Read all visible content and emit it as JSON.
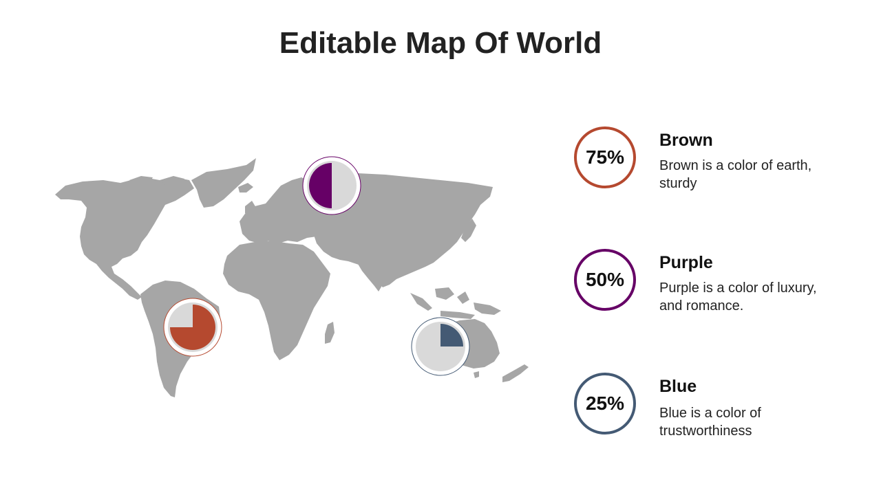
{
  "slide": {
    "title": "Editable Map Of World"
  },
  "colors": {
    "map_gray": "#a6a6a6",
    "pie_bg": "#d9d9d9",
    "brown": "#b5492f",
    "purple": "#660066",
    "blue": "#445a74"
  },
  "items": [
    {
      "key": "brown",
      "percent": "75%",
      "value": 0.75,
      "heading": "Brown",
      "description": "Brown is a color of earth, sturdy",
      "color": "#b5492f"
    },
    {
      "key": "purple",
      "percent": "50%",
      "value": 0.5,
      "heading": "Purple",
      "description": "Purple is a color of luxury, and romance.",
      "color": "#660066"
    },
    {
      "key": "blue",
      "percent": "25%",
      "value": 0.25,
      "heading": "Blue",
      "description": "Blue is a color of trustworthiness",
      "color": "#445a74"
    }
  ],
  "markers": [
    {
      "region": "south-america",
      "icon": "south-america-continent-icon",
      "value": 0.75,
      "color": "#b5492f"
    },
    {
      "region": "europe",
      "icon": "europe-continent-icon",
      "value": 0.5,
      "color": "#660066"
    },
    {
      "region": "australia",
      "icon": "australia-continent-icon",
      "value": 0.25,
      "color": "#445a74"
    }
  ]
}
